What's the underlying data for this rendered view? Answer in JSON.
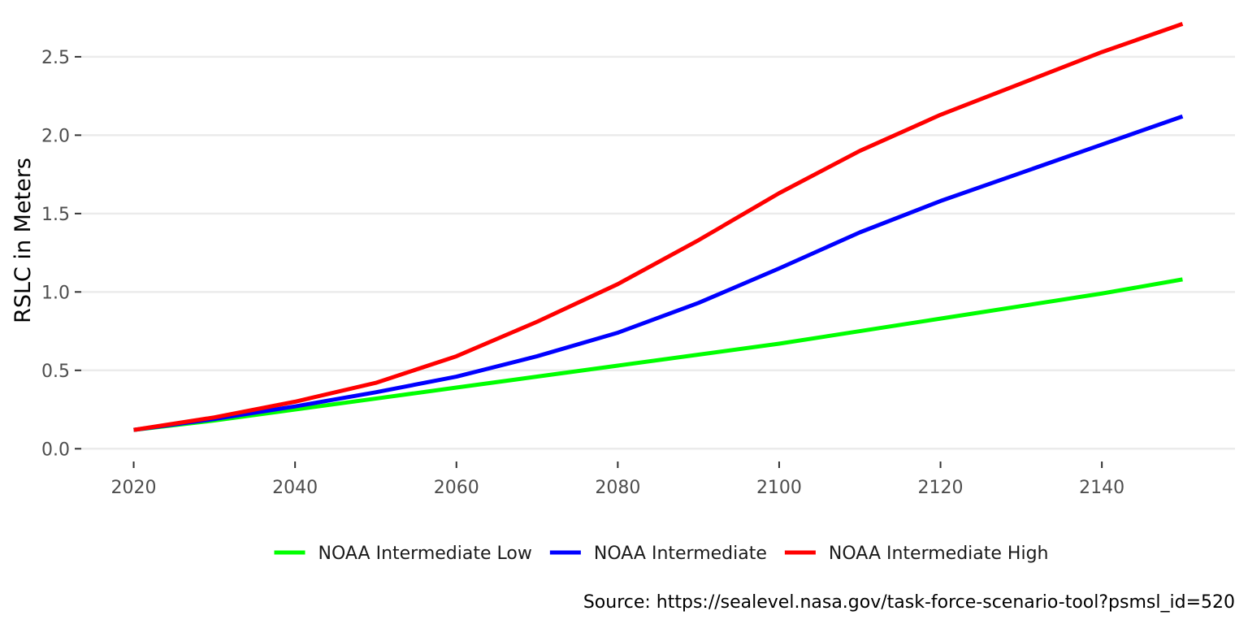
{
  "chart_data": {
    "type": "line",
    "title": "",
    "xlabel": "",
    "ylabel": "RSLC in Meters",
    "caption": "Source: https://sealevel.nasa.gov/task-force-scenario-tool?psmsl_id=520",
    "x": [
      2020,
      2030,
      2040,
      2050,
      2060,
      2070,
      2080,
      2090,
      2100,
      2110,
      2120,
      2130,
      2140,
      2150
    ],
    "xlim": [
      2013.5,
      2156.5
    ],
    "ylim": [
      -0.04,
      2.8
    ],
    "x_ticks": [
      2020,
      2040,
      2060,
      2080,
      2100,
      2120,
      2140
    ],
    "y_ticks": [
      0.0,
      0.5,
      1.0,
      1.5,
      2.0,
      2.5
    ],
    "x_tick_labels": [
      "2020",
      "2040",
      "2060",
      "2080",
      "2100",
      "2120",
      "2140"
    ],
    "y_tick_labels": [
      "0.0",
      "0.5",
      "1.0",
      "1.5",
      "2.0",
      "2.5"
    ],
    "grid": true,
    "legend_position": "bottom",
    "series": [
      {
        "name": "NOAA Intermediate Low",
        "color": "#00ff00",
        "values": [
          0.12,
          0.18,
          0.25,
          0.32,
          0.39,
          0.46,
          0.53,
          0.6,
          0.67,
          0.75,
          0.83,
          0.91,
          0.99,
          1.08
        ]
      },
      {
        "name": "NOAA Intermediate",
        "color": "#0000ff",
        "values": [
          0.12,
          0.19,
          0.27,
          0.36,
          0.46,
          0.59,
          0.74,
          0.93,
          1.15,
          1.38,
          1.58,
          1.76,
          1.94,
          2.12
        ]
      },
      {
        "name": "NOAA Intermediate High",
        "color": "#ff0000",
        "values": [
          0.12,
          0.2,
          0.3,
          0.42,
          0.59,
          0.81,
          1.05,
          1.33,
          1.63,
          1.9,
          2.13,
          2.33,
          2.53,
          2.71
        ]
      }
    ]
  }
}
